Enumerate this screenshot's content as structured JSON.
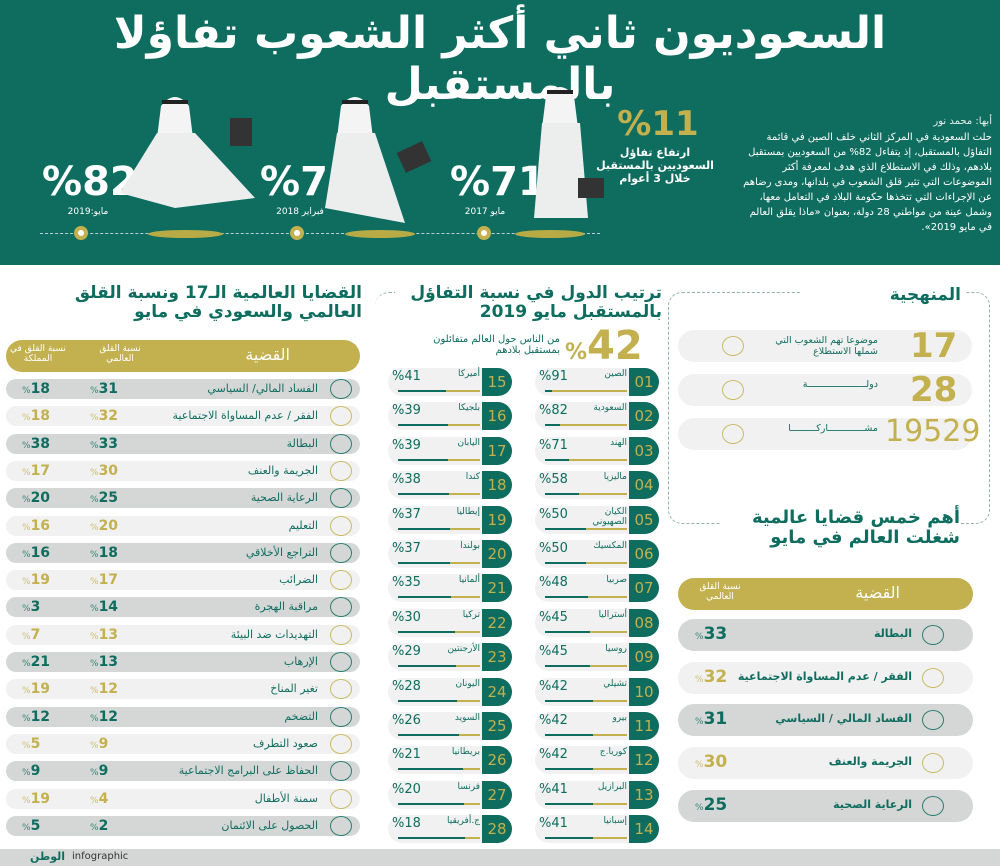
{
  "header": {
    "title": "السعوديون ثاني أكثر الشعوب تفاؤلا بالمستقبل",
    "byline": "أبها: محمد نور",
    "intro": "حلت السعودية في المركز الثاني خلف الصين في قائمة التفاؤل بالمستقبل، إذ يتفاءل 82% من السعوديين بمستقبل بلادهم، وذلك في الاستطلاع الذي هدف لمعرفة أكثر الموضوعات التي تثير قلق الشعوب في بلدانها، ومدى رضاهم عن الإجراءات التي تتخذها حكومة البلاد في التعامل معها، وشمل عينة من مواطني 28 دولة، بعنوان «ماذا يقلق العالم في مايو 2019».",
    "rise_value": "%11",
    "rise_caption": "ارتفاع تفاؤل السعوديين بالمستقبل خلال 3 أعوام",
    "timeline": [
      {
        "value": "%71",
        "date": "مايو 2017"
      },
      {
        "value": "%78",
        "date": "فبراير 2018"
      },
      {
        "value": "%82",
        "date": "مايو:2019"
      }
    ]
  },
  "methodology": {
    "title": "المنهجية",
    "items": [
      {
        "value": "17",
        "label": "موضوعا تهم الشعوب التي شملها الاستطلاع",
        "icon": "lightbulb-gears-icon"
      },
      {
        "value": "28",
        "label": "دولـــــــــــــــــــــة",
        "icon": "globe-people-icon"
      },
      {
        "value": "19529",
        "label": "مشـــــــــــــاركـــــــــا",
        "icon": "group-icon"
      }
    ]
  },
  "ranking": {
    "title": "ترتيب الدول في نسبة التفاؤل بالمستقبل مايو 2019",
    "world_value": "42",
    "world_pct": "%",
    "world_caption": "من الناس حول العالم متفائلون بمستقبل بلادهم",
    "countries": [
      [
        "01",
        "الصين",
        91
      ],
      [
        "02",
        "السعودية",
        82
      ],
      [
        "03",
        "الهند",
        71
      ],
      [
        "04",
        "ماليزيا",
        58
      ],
      [
        "05",
        "الكيان الصهيوني",
        50
      ],
      [
        "06",
        "المكسيك",
        50
      ],
      [
        "07",
        "صربيا",
        48
      ],
      [
        "08",
        "أستراليا",
        45
      ],
      [
        "09",
        "روسيا",
        45
      ],
      [
        "10",
        "تشيلي",
        42
      ],
      [
        "11",
        "بيرو",
        42
      ],
      [
        "12",
        "كوريا.ج",
        42
      ],
      [
        "13",
        "البرازيل",
        41
      ],
      [
        "14",
        "إسبانيا",
        41
      ],
      [
        "15",
        "أميركا",
        41
      ],
      [
        "16",
        "بلجيكا",
        39
      ],
      [
        "17",
        "اليابان",
        39
      ],
      [
        "18",
        "كندا",
        38
      ],
      [
        "19",
        "إيطاليا",
        37
      ],
      [
        "20",
        "بولندا",
        37
      ],
      [
        "21",
        "ألمانيا",
        35
      ],
      [
        "22",
        "تركيا",
        30
      ],
      [
        "23",
        "الأرجنتين",
        29
      ],
      [
        "24",
        "اليونان",
        28
      ],
      [
        "25",
        "السويد",
        26
      ],
      [
        "26",
        "بريطانيا",
        21
      ],
      [
        "27",
        "فرنسا",
        20
      ],
      [
        "28",
        "ج.أفريقيا",
        18
      ]
    ]
  },
  "issues17": {
    "title": "القضايا العالمية الـ17 ونسبة القلق العالمي والسعودي في مايو",
    "col_issue": "القضية",
    "col_world": "نسبة القلق العالمي",
    "col_ksa": "نسبة القلق في المملكة",
    "rows": [
      [
        "الفساد المالي/ السياسي",
        31,
        18
      ],
      [
        "الفقر / عدم المساواة الاجتماعية",
        32,
        18
      ],
      [
        "البطالة",
        33,
        38
      ],
      [
        "الجريمة والعنف",
        30,
        17
      ],
      [
        "الرعاية الصحية",
        25,
        20
      ],
      [
        "التعليم",
        20,
        16
      ],
      [
        "التراجع الأخلاقي",
        18,
        16
      ],
      [
        "الضرائب",
        17,
        19
      ],
      [
        "مراقبة الهجرة",
        14,
        3
      ],
      [
        "التهديدات ضد البيئة",
        13,
        7
      ],
      [
        "الإرهاب",
        13,
        21
      ],
      [
        "تغير المناخ",
        12,
        19
      ],
      [
        "التضخم",
        12,
        12
      ],
      [
        "صعود التطرف",
        9,
        5
      ],
      [
        "الحفاظ على البرامج الاجتماعية",
        9,
        9
      ],
      [
        "سمنة الأطفال",
        4,
        19
      ],
      [
        "الحصول على الائتمان",
        2,
        5
      ]
    ]
  },
  "top5": {
    "title": "أهم خمس قضايا عالمية شغلت العالم في مايو",
    "col_issue": "القضية",
    "col_world": "نسبة القلق العالمي",
    "rows": [
      [
        "البطالة",
        33
      ],
      [
        "الفقر / عدم المساواة الاجتماعية",
        32
      ],
      [
        "الفساد المالي / السياسي",
        31
      ],
      [
        "الجريمة والعنف",
        30
      ],
      [
        "الرعاية الصحية",
        25
      ]
    ]
  },
  "footer": {
    "brand": "infographic",
    "logo": "الوطن"
  },
  "colors": {
    "green": "#0e6d5f",
    "gold": "#c3b04e",
    "light_row": "#f1f1f1",
    "dark_row": "#d5d7d7"
  }
}
